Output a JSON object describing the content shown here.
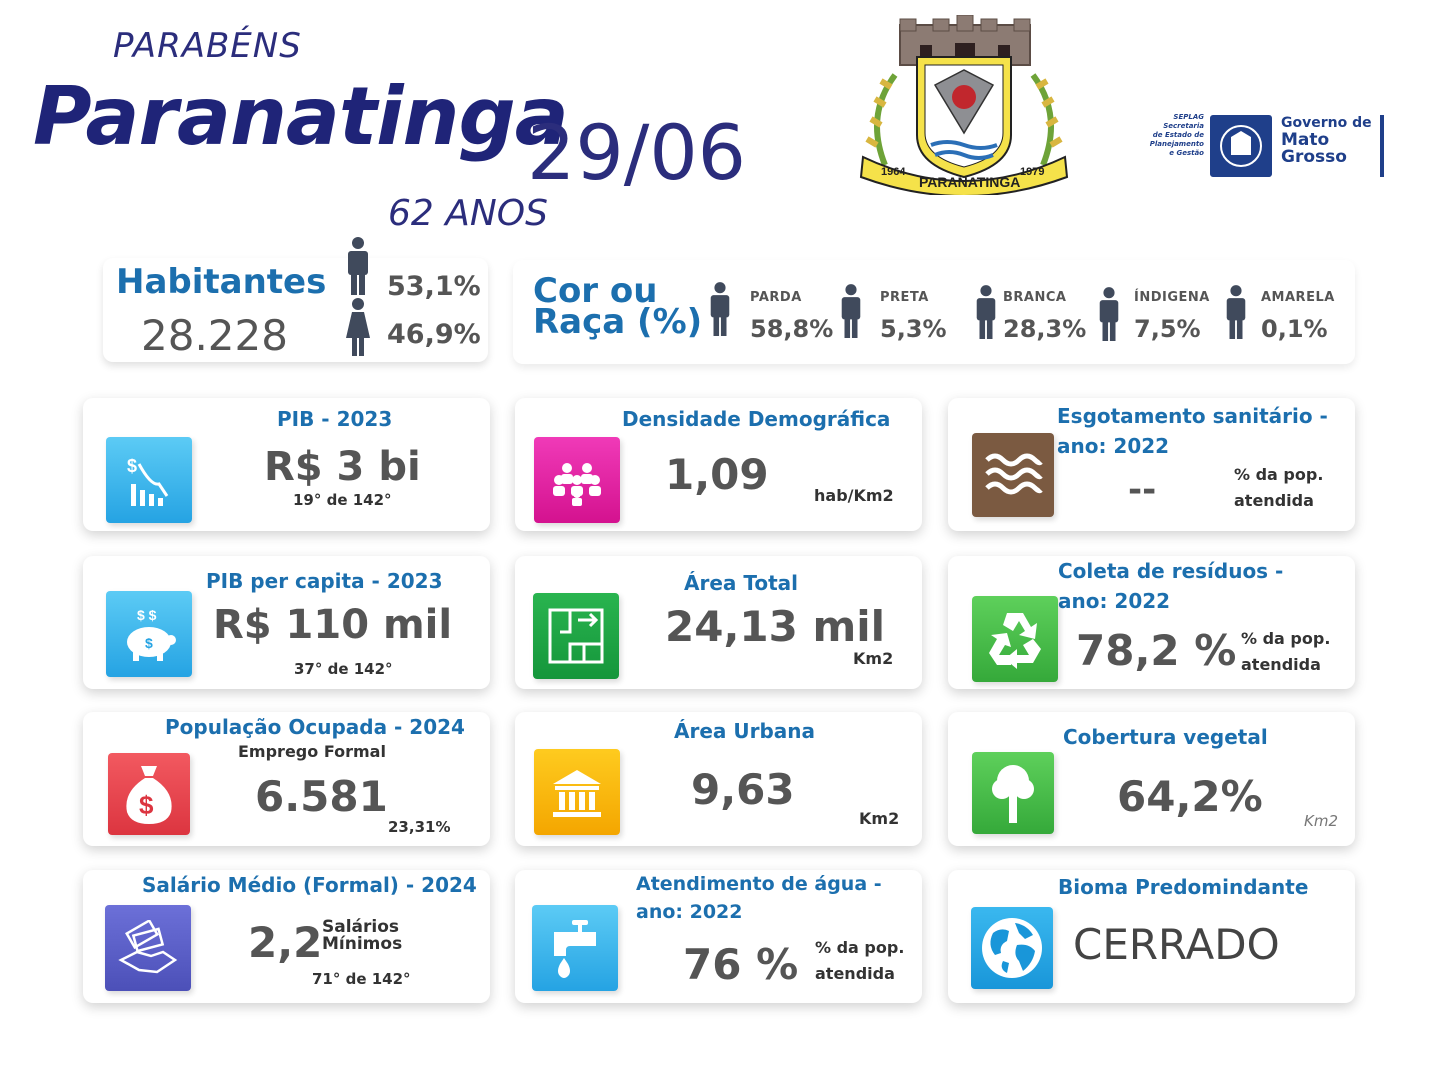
{
  "header": {
    "greeting": "PARABÉNS",
    "city": "Paranatinga",
    "date": "29/06",
    "age": "62 ANOS"
  },
  "crest": {
    "name": "PARANATINGA",
    "year_left": "1964",
    "year_right": "1979"
  },
  "gov_logo": {
    "secretaria_lines": [
      "SEPLAG",
      "Secretaria",
      "de Estado de",
      "Planejamento",
      "e Gestão"
    ],
    "line1": "Governo de",
    "line2": "Mato",
    "line3": "Grosso"
  },
  "habitantes": {
    "title": "Habitantes",
    "value": "28.228",
    "male_pct": "53,1%",
    "female_pct": "46,9%"
  },
  "raca": {
    "title_line1": "Cor ou",
    "title_line2": "Raça (%)",
    "items": [
      {
        "label": "PARDA",
        "value": "58,8%"
      },
      {
        "label": "PRETA",
        "value": "5,3%"
      },
      {
        "label": "BRANCA",
        "value": "28,3%"
      },
      {
        "label": "ÍNDIGENA",
        "value": "7,5%"
      },
      {
        "label": "AMARELA",
        "value": "0,1%"
      }
    ]
  },
  "tiles": {
    "pib": {
      "title": "PIB - 2023",
      "value": "R$ 3 bi",
      "rank": "19° de 142°",
      "icon": "chart-down-icon",
      "color": "#3fb7ee"
    },
    "densidade": {
      "title": "Densidade Demográfica",
      "value": "1,09",
      "unit": "hab/Km2",
      "icon": "people-group-icon",
      "color": "#e21ea3"
    },
    "esgoto": {
      "title_line1": "Esgotamento sanitário -",
      "title_line2": "ano: 2022",
      "value": "--",
      "note_line1": "% da pop.",
      "note_line2": "atendida",
      "icon": "waves-icon",
      "color": "#7b5a41"
    },
    "pib_pc": {
      "title": "PIB per capita - 2023",
      "value": "R$ 110 mil",
      "rank": "37° de 142°",
      "icon": "piggy-bank-icon",
      "color": "#3fb7ee"
    },
    "area_total": {
      "title": "Área Total",
      "value": "24,13 mil",
      "unit": "Km2",
      "icon": "floor-plan-icon",
      "color": "#1fa84a"
    },
    "coleta": {
      "title_line1": "Coleta de resíduos -",
      "title_line2": "ano: 2022",
      "value": "78,2 %",
      "note_line1": "% da pop.",
      "note_line2": "atendida",
      "icon": "recycle-icon",
      "color": "#4cc14f"
    },
    "pop_ocupada": {
      "title": "População Ocupada - 2024",
      "subtitle": "Emprego Formal",
      "value": "6.581",
      "pct": "23,31%",
      "icon": "money-bag-icon",
      "color": "#e8434c"
    },
    "area_urbana": {
      "title": "Área Urbana",
      "value": "9,63",
      "unit": "Km2",
      "icon": "bank-building-icon",
      "color": "#f7b400"
    },
    "cobertura": {
      "title": "Cobertura vegetal",
      "value": "64,2%",
      "unit": "Km2",
      "icon": "tree-icon",
      "color": "#4cc14f"
    },
    "salario": {
      "title": "Salário Médio (Formal) - 2024",
      "value": "2,2",
      "unit_line1": "Salários",
      "unit_line2": "Mínimos",
      "rank": "71° de 142°",
      "icon": "hand-money-icon",
      "color": "#5b5fc7"
    },
    "agua": {
      "title_line1": "Atendimento de água -",
      "title_line2": "ano: 2022",
      "value": "76 %",
      "note_line1": "% da pop.",
      "note_line2": "atendida",
      "icon": "faucet-icon",
      "color": "#3fb7ee"
    },
    "bioma": {
      "title": "Bioma Predomindante",
      "value": "CERRADO",
      "icon": "globe-icon",
      "color": "#29a9e6"
    }
  }
}
